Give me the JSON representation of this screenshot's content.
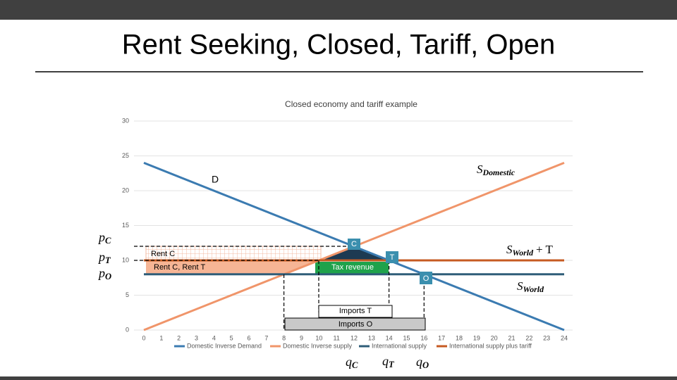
{
  "slide_title": "Rent Seeking, Closed, Tariff, Open",
  "chart_data": {
    "type": "line",
    "title": "Closed economy and tariff example",
    "xlim": [
      0,
      24
    ],
    "xticks": [
      0,
      1,
      2,
      3,
      4,
      5,
      6,
      7,
      8,
      9,
      10,
      11,
      12,
      13,
      14,
      15,
      16,
      17,
      18,
      19,
      20,
      21,
      22,
      23,
      24
    ],
    "ylim": [
      0,
      30
    ],
    "yticks": [
      0,
      5,
      10,
      15,
      20,
      25,
      30
    ],
    "series": [
      {
        "name": "Domestic Inverse Demand",
        "color": "#3b7bb1",
        "x": [
          0,
          24
        ],
        "values": [
          24,
          0
        ]
      },
      {
        "name": "Domestic Inverse supply",
        "color": "#f0956a",
        "x": [
          0,
          24
        ],
        "values": [
          0,
          24
        ]
      },
      {
        "name": "International supply",
        "color": "#2f5d78",
        "x": [
          0,
          24
        ],
        "values": [
          8,
          8
        ]
      },
      {
        "name": "International supply plus tariff",
        "color": "#c65a22",
        "x": [
          0,
          24
        ],
        "values": [
          10,
          10
        ]
      }
    ],
    "annotations": [
      "D",
      "C",
      "T",
      "O",
      "Rent C",
      "Rent C, Rent T",
      "Tax revenue",
      "Imports T",
      "Imports O"
    ],
    "math_labels": [
      {
        "symbol": "S",
        "subscript": "Domestic"
      },
      {
        "symbol": "S",
        "subscript": "World",
        "suffix": "+ T"
      },
      {
        "symbol": "S",
        "subscript": "World"
      },
      {
        "symbol": "p",
        "subscript": "C"
      },
      {
        "symbol": "p",
        "subscript": "T"
      },
      {
        "symbol": "p",
        "subscript": "O"
      },
      {
        "symbol": "q",
        "subscript": "C"
      },
      {
        "symbol": "q",
        "subscript": "T"
      },
      {
        "symbol": "q",
        "subscript": "O"
      }
    ]
  }
}
